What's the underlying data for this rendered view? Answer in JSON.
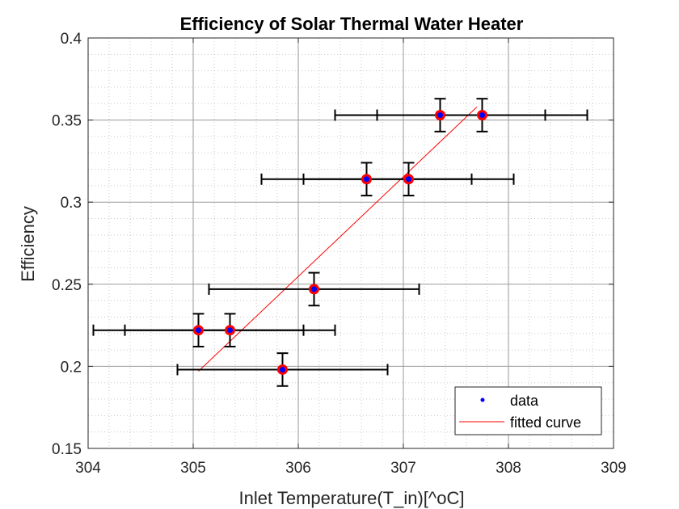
{
  "chart_data": {
    "type": "scatter",
    "title": "Efficiency of Solar Thermal Water Heater",
    "xlabel": "Inlet Temperature(T_in)[^oC]",
    "ylabel": "Efficiency",
    "xlim": [
      304,
      309
    ],
    "ylim": [
      0.15,
      0.4
    ],
    "xticks": [
      304,
      305,
      306,
      307,
      308,
      309
    ],
    "xtick_labels": [
      "304",
      "305",
      "306",
      "307",
      "308",
      "309"
    ],
    "yticks": [
      0.15,
      0.2,
      0.25,
      0.3,
      0.35,
      0.4
    ],
    "ytick_labels": [
      "0.15",
      "0.2",
      "0.25",
      "0.3",
      "0.35",
      "0.4"
    ],
    "grid": true,
    "minor_grid": true,
    "legend_position": "bottom-right",
    "series": [
      {
        "name": "data",
        "kind": "points",
        "color": "#0000ff",
        "marker_edge_color": "#ff0000",
        "points": [
          {
            "x": 305.05,
            "y": 0.222,
            "xerr": 1.0,
            "yerr": 0.01
          },
          {
            "x": 305.35,
            "y": 0.222,
            "xerr": 1.0,
            "yerr": 0.01
          },
          {
            "x": 305.85,
            "y": 0.198,
            "xerr": 1.0,
            "yerr": 0.01
          },
          {
            "x": 306.15,
            "y": 0.247,
            "xerr": 1.0,
            "yerr": 0.01
          },
          {
            "x": 306.65,
            "y": 0.314,
            "xerr": 1.0,
            "yerr": 0.01
          },
          {
            "x": 307.05,
            "y": 0.314,
            "xerr": 1.0,
            "yerr": 0.01
          },
          {
            "x": 307.35,
            "y": 0.353,
            "xerr": 1.0,
            "yerr": 0.01
          },
          {
            "x": 307.75,
            "y": 0.353,
            "xerr": 1.0,
            "yerr": 0.01
          }
        ]
      },
      {
        "name": "fitted curve",
        "kind": "line",
        "color": "#ff0000",
        "x": [
          305.05,
          307.7
        ],
        "y": [
          0.197,
          0.358
        ]
      }
    ],
    "errorbar_color": "#000000"
  }
}
